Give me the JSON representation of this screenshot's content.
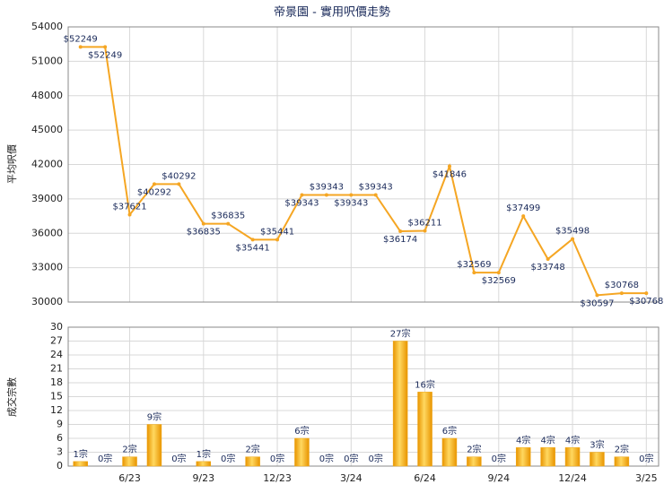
{
  "chart_data": [
    {
      "type": "line",
      "title": "帝景園 - 實用呎價走勢",
      "ylabel": "平均呎價",
      "color": "#f5a623",
      "categories": [
        null,
        null,
        "6/23",
        null,
        null,
        "9/23",
        null,
        null,
        "12/23",
        null,
        null,
        "3/24",
        null,
        null,
        "6/24",
        null,
        null,
        "9/24",
        null,
        null,
        "12/24",
        null,
        null,
        "3/25"
      ],
      "values": [
        52249,
        52249,
        37621,
        40292,
        40292,
        36835,
        36835,
        35441,
        35441,
        39343,
        39343,
        39343,
        39343,
        36174,
        36211,
        41846,
        32569,
        32569,
        37499,
        33748,
        35498,
        30597,
        30768,
        30768
      ],
      "value_labels": [
        "$52249",
        "$52249",
        "$37621",
        "$40292",
        "$40292",
        "$36835",
        "$36835",
        "$35441",
        "$35441",
        "$39343",
        "$39343",
        "$39343",
        "$39343",
        "$36174",
        "$36211",
        "$41846",
        "$32569",
        "$32569",
        "$37499",
        "$33748",
        "$35498",
        "$30597",
        "$30768",
        "$30768"
      ],
      "ylim": [
        30000,
        54000
      ],
      "yticks": [
        30000,
        33000,
        36000,
        39000,
        42000,
        45000,
        48000,
        51000,
        54000
      ],
      "grid": true
    },
    {
      "type": "bar",
      "ylabel": "成交宗數",
      "color": "#f0a818",
      "categories": [
        null,
        null,
        "6/23",
        null,
        null,
        "9/23",
        null,
        null,
        "12/23",
        null,
        null,
        "3/24",
        null,
        null,
        "6/24",
        null,
        null,
        "9/24",
        null,
        null,
        "12/24",
        null,
        null,
        "3/25"
      ],
      "values": [
        1,
        0,
        2,
        9,
        0,
        1,
        0,
        2,
        0,
        6,
        0,
        0,
        0,
        27,
        16,
        6,
        2,
        0,
        4,
        4,
        4,
        3,
        2,
        0
      ],
      "value_labels": [
        "1宗",
        "0宗",
        "2宗",
        "9宗",
        "0宗",
        "1宗",
        "0宗",
        "2宗",
        "0宗",
        "6宗",
        "0宗",
        "0宗",
        "0宗",
        "27宗",
        "16宗",
        "6宗",
        "2宗",
        "0宗",
        "4宗",
        "4宗",
        "4宗",
        "3宗",
        "2宗",
        "0宗"
      ],
      "ylim": [
        0,
        30
      ],
      "yticks": [
        0,
        3,
        6,
        9,
        12,
        15,
        18,
        21,
        24,
        27,
        30
      ],
      "grid": true
    }
  ]
}
